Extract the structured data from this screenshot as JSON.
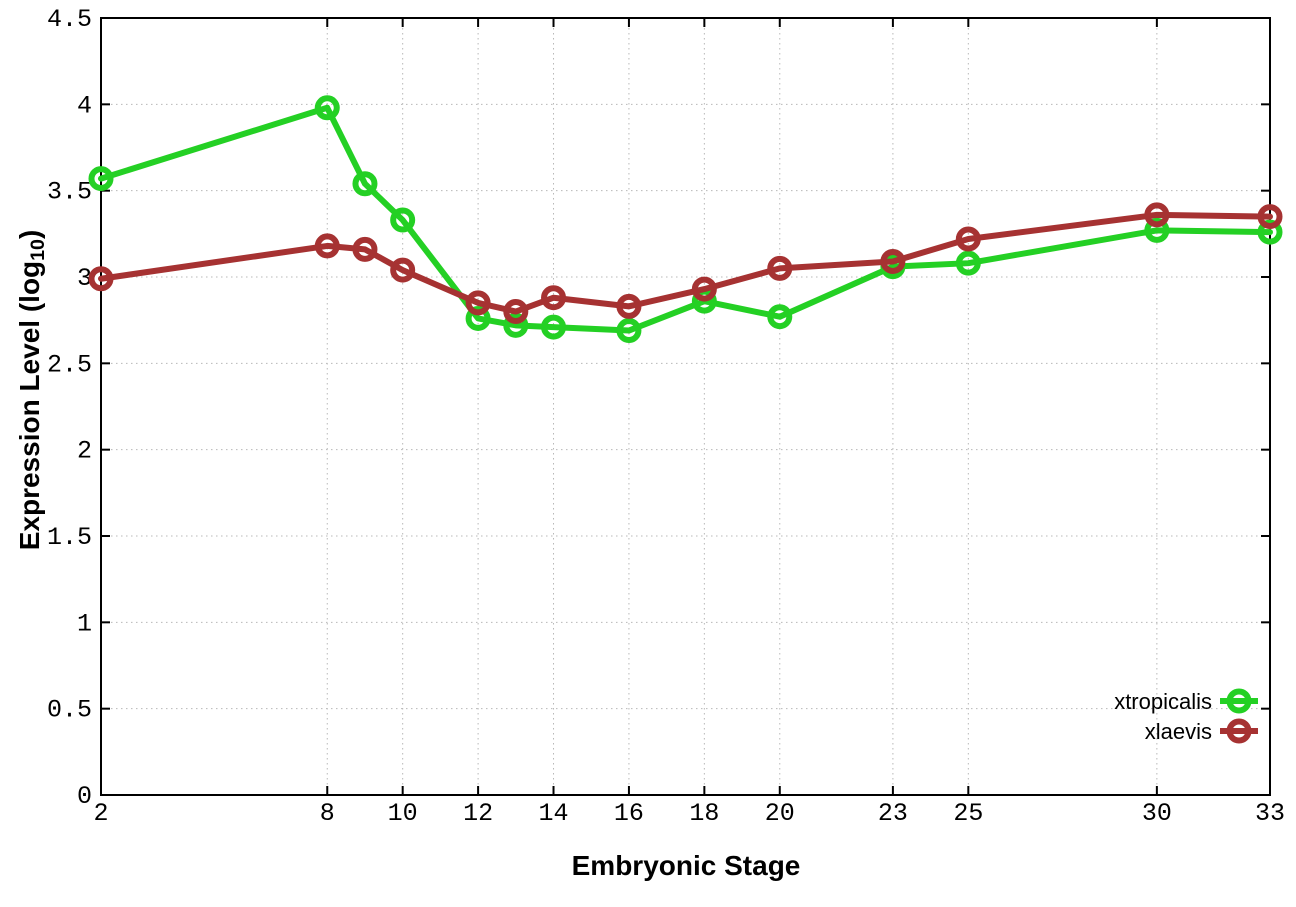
{
  "chart_data": {
    "type": "line",
    "title": "",
    "xlabel": "Embryonic Stage",
    "ylabel": "Expression Level (log10)",
    "ylabel_main": "Expression Level (log",
    "ylabel_sub": "10",
    "ylabel_close": ")",
    "x": [
      2,
      8,
      9,
      10,
      12,
      13,
      14,
      16,
      18,
      20,
      23,
      25,
      30,
      33
    ],
    "series": [
      {
        "name": "xtropicalis",
        "color": "#24d024",
        "values": [
          3.57,
          3.98,
          3.54,
          3.33,
          2.76,
          2.72,
          2.71,
          2.69,
          2.86,
          2.77,
          3.06,
          3.08,
          3.27,
          3.26
        ]
      },
      {
        "name": "xlaevis",
        "color": "#a63232",
        "values": [
          2.99,
          3.18,
          3.16,
          3.04,
          2.85,
          2.8,
          2.88,
          2.83,
          2.93,
          3.05,
          3.09,
          3.22,
          3.36,
          3.35
        ]
      }
    ],
    "xlim": [
      2,
      33
    ],
    "ylim": [
      0,
      4.5
    ],
    "xticks": [
      "2",
      "8",
      "10",
      "12",
      "14",
      "16",
      "18",
      "20",
      "23",
      "25",
      "30",
      "33"
    ],
    "yticks": [
      "0",
      "0.5",
      "1",
      "1.5",
      "2",
      "2.5",
      "3",
      "3.5",
      "4",
      "4.5"
    ],
    "grid": true,
    "legend_position": "bottom-right",
    "marker": "open-circle",
    "colors": {
      "border": "#000000",
      "gridline": "#b8b8b8",
      "tick_text": "#000000"
    }
  }
}
